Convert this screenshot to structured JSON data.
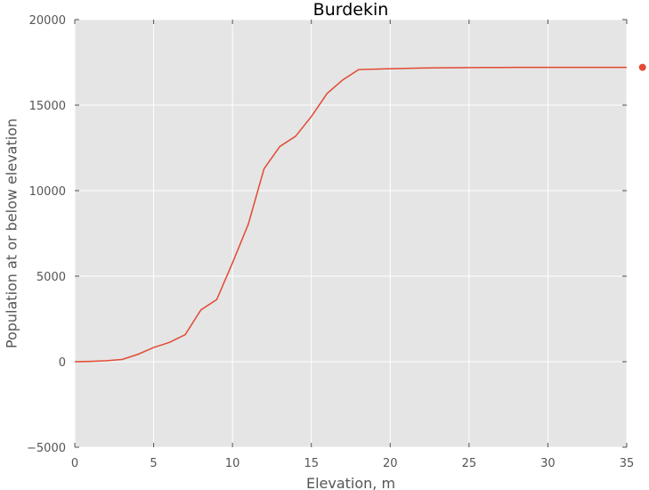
{
  "chart_data": {
    "type": "line",
    "title": "Burdekin",
    "xlabel": "Elevation, m",
    "ylabel": "Population at or below elevation",
    "xlim": [
      0,
      35
    ],
    "ylim": [
      -5000,
      20000
    ],
    "x_ticks": [
      "0",
      "5",
      "10",
      "15",
      "20",
      "25",
      "30",
      "35"
    ],
    "y_ticks": [
      "−5000",
      "0",
      "5000",
      "10000",
      "15000",
      "20000"
    ],
    "x_tick_values": [
      0,
      5,
      10,
      15,
      20,
      25,
      30,
      35
    ],
    "y_tick_values": [
      -5000,
      0,
      5000,
      10000,
      15000,
      20000
    ],
    "grid": true,
    "series": [
      {
        "color": "#e24a33",
        "x": [
          0,
          1,
          2,
          3,
          4,
          5,
          6,
          7,
          8,
          9,
          10,
          11,
          12,
          13,
          14,
          15,
          16,
          17,
          18,
          19,
          20,
          21,
          22,
          23,
          24,
          25,
          26,
          27,
          28,
          29,
          30,
          31,
          32,
          33,
          34,
          35
        ],
        "y": [
          0,
          20,
          60,
          130,
          430,
          830,
          1130,
          1580,
          3030,
          3630,
          5780,
          8030,
          11280,
          12580,
          13180,
          14330,
          15680,
          16480,
          17080,
          17100,
          17130,
          17150,
          17170,
          17180,
          17190,
          17195,
          17200,
          17200,
          17205,
          17205,
          17210,
          17210,
          17210,
          17210,
          17210,
          17210
        ]
      }
    ],
    "legend_marker": {
      "color": "#e24a33",
      "x": 36,
      "y": 17210
    }
  },
  "colors": {
    "plot_background": "#e5e5e5",
    "grid": "#ffffff",
    "line": "#e24a33"
  }
}
